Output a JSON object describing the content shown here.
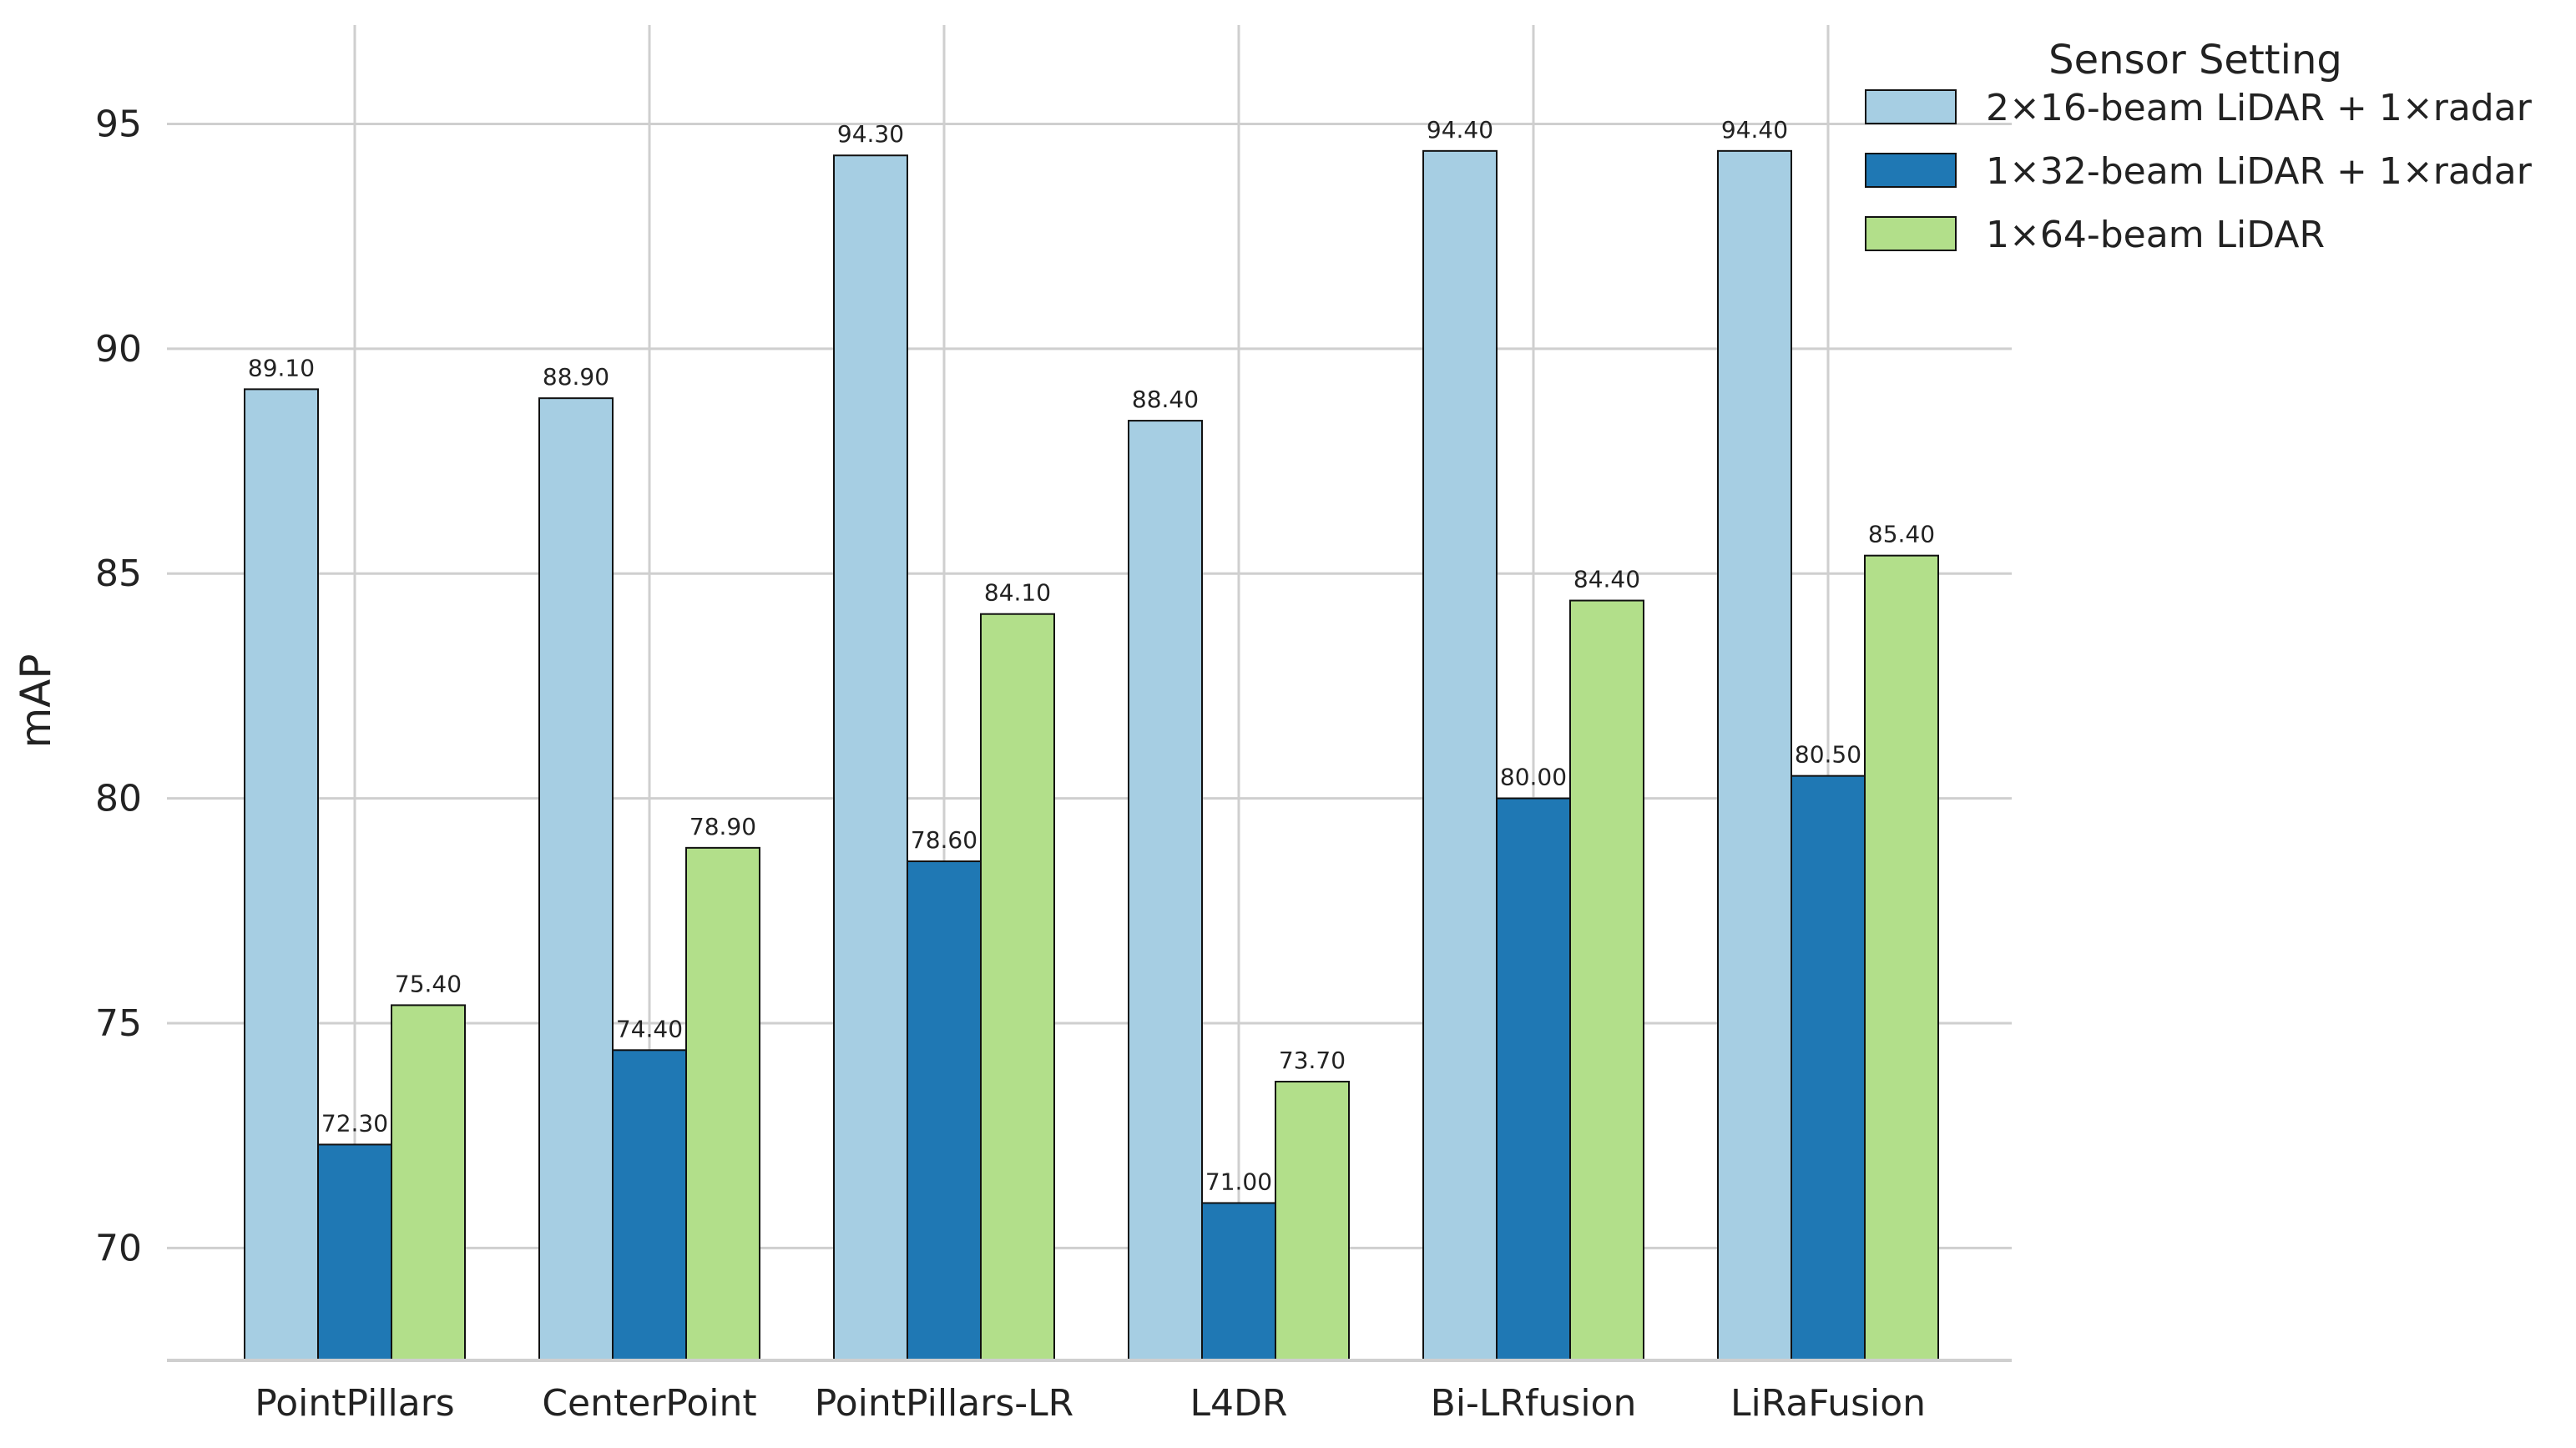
{
  "chart_data": {
    "type": "bar",
    "title": "",
    "xlabel": "",
    "ylabel": "mAP",
    "ylim": [
      67.5,
      97.2
    ],
    "yticks": [
      70,
      75,
      80,
      85,
      90,
      95
    ],
    "grid": true,
    "legend_title": "Sensor Setting",
    "legend_position": "top-right",
    "categories": [
      "PointPillars",
      "CenterPoint",
      "PointPillars-LR",
      "L4DR",
      "Bi-LRfusion",
      "LiRaFusion"
    ],
    "series": [
      {
        "name": "2×16-beam LiDAR + 1×radar",
        "color": "#a6cee3",
        "values": [
          89.1,
          88.9,
          94.3,
          88.4,
          94.4,
          94.4
        ],
        "labels": [
          "89.10",
          "88.90",
          "94.30",
          "88.40",
          "94.40",
          "94.40"
        ]
      },
      {
        "name": "1×32-beam LiDAR + 1×radar",
        "color": "#1f78b4",
        "values": [
          72.3,
          74.4,
          78.6,
          71.0,
          80.0,
          80.5
        ],
        "labels": [
          "72.30",
          "74.40",
          "78.60",
          "71.00",
          "80.00",
          "80.50"
        ]
      },
      {
        "name": "1×64-beam LiDAR",
        "color": "#b2df8a",
        "values": [
          75.4,
          78.9,
          84.1,
          73.7,
          84.4,
          85.4
        ],
        "labels": [
          "75.40",
          "78.90",
          "84.10",
          "73.70",
          "84.40",
          "85.40"
        ]
      }
    ]
  }
}
